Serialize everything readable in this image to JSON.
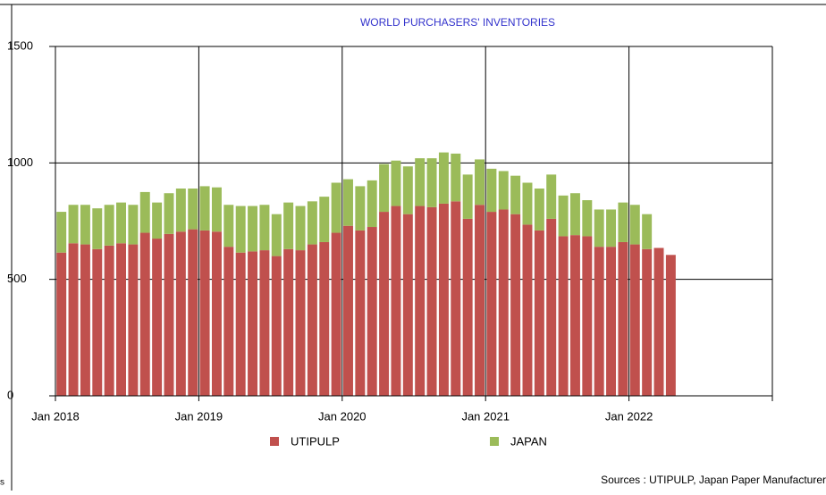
{
  "chart_data": {
    "type": "stacked-bar",
    "title": "WORLD PURCHASERS' INVENTORIES",
    "categories": [
      "Jan 2018",
      null,
      null,
      null,
      null,
      null,
      null,
      null,
      null,
      null,
      null,
      null,
      "Jan 2019",
      null,
      null,
      null,
      null,
      null,
      null,
      null,
      null,
      null,
      null,
      null,
      "Jan 2020",
      null,
      null,
      null,
      null,
      null,
      null,
      null,
      null,
      null,
      null,
      null,
      "Jan 2021",
      null,
      null,
      null,
      null,
      null,
      null,
      null,
      null,
      null,
      null,
      null,
      "Jan 2022",
      null,
      null,
      null,
      null,
      null,
      null,
      null,
      null,
      null,
      null,
      null
    ],
    "series": [
      {
        "name": "UTIPULP",
        "color": "#c0504d",
        "values": [
          615,
          655,
          650,
          630,
          645,
          655,
          650,
          700,
          675,
          695,
          705,
          715,
          710,
          705,
          640,
          615,
          620,
          625,
          600,
          630,
          625,
          650,
          660,
          700,
          730,
          710,
          725,
          790,
          815,
          780,
          815,
          810,
          825,
          835,
          760,
          820,
          790,
          800,
          780,
          735,
          710,
          760,
          685,
          690,
          685,
          640,
          640,
          660,
          650,
          630,
          635,
          605,
          null,
          null,
          null,
          null,
          null,
          null,
          null,
          null
        ]
      },
      {
        "name": "JAPAN",
        "color": "#9bbb59",
        "values": [
          175,
          165,
          170,
          175,
          175,
          175,
          170,
          175,
          155,
          175,
          185,
          175,
          190,
          190,
          180,
          200,
          195,
          195,
          180,
          200,
          190,
          185,
          195,
          215,
          200,
          190,
          200,
          205,
          195,
          205,
          205,
          210,
          220,
          205,
          190,
          195,
          185,
          165,
          165,
          180,
          180,
          190,
          175,
          180,
          155,
          160,
          160,
          170,
          170,
          150,
          null,
          null,
          null,
          null,
          null,
          null,
          null,
          null,
          null,
          null
        ]
      }
    ],
    "ylim": [
      0,
      1500
    ],
    "yticks": [
      0,
      500,
      1000,
      1500
    ],
    "grid": true,
    "source": "Sources : UTIPULP, Japan Paper Manufacturer",
    "side_note": "s"
  }
}
